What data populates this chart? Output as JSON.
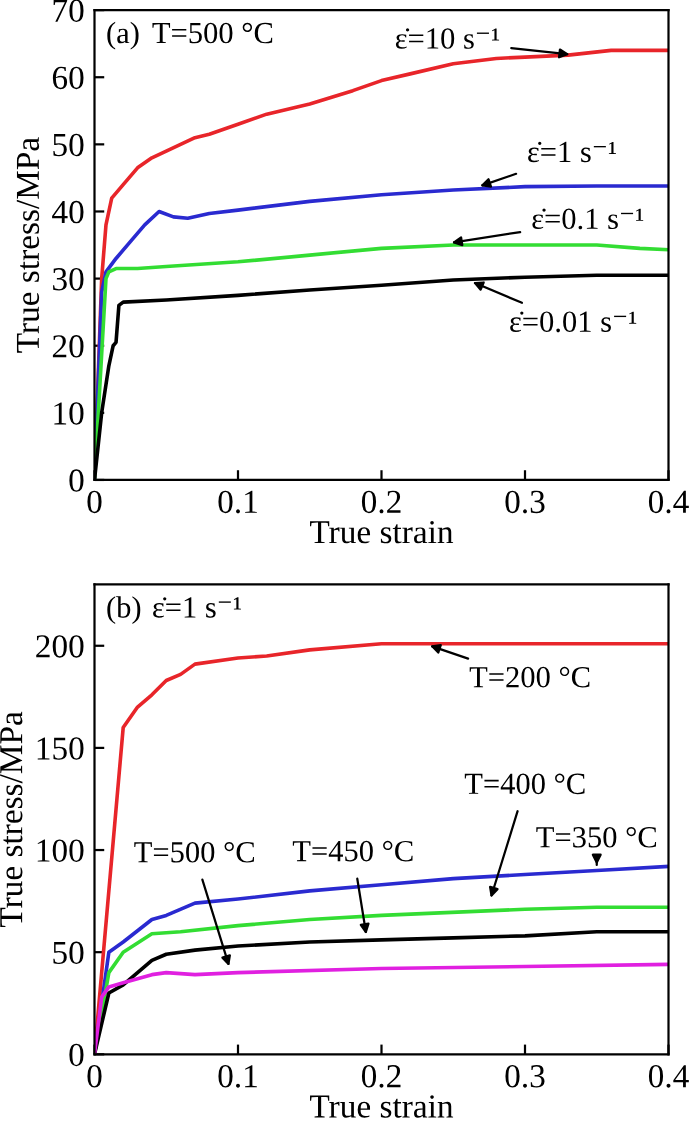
{
  "chart_data": [
    {
      "type": "line",
      "xlabel": "True strain",
      "ylabel": "True stress/MPa",
      "xlim": [
        0,
        0.4
      ],
      "ylim": [
        0,
        70
      ],
      "xticks": [
        0,
        0.1,
        0.2,
        0.3,
        0.4
      ],
      "yticks": [
        0,
        10,
        20,
        30,
        40,
        50,
        60,
        70
      ],
      "grid": false,
      "marker": "none",
      "line_style": "solid",
      "annotations": [
        "(a)",
        "T=500 °C",
        {
          "text": "ε̇=10 s⁻¹",
          "x": 0.335,
          "y": 63.3
        },
        {
          "text": "ε̇=1 s⁻¹",
          "x": 0.265,
          "y": 43.5
        },
        {
          "text": "ε̇=0.1 s⁻¹",
          "x": 0.245,
          "y": 35.2
        },
        {
          "text": "ε̇=0.01 s⁻¹",
          "x": 0.26,
          "y": 29.8
        }
      ],
      "series": [
        {
          "color": "#e8252a",
          "x": [
            0,
            0.005,
            0.008,
            0.012,
            0.02,
            0.03,
            0.04,
            0.05,
            0.06,
            0.07,
            0.08,
            0.1,
            0.12,
            0.15,
            0.18,
            0.2,
            0.22,
            0.25,
            0.28,
            0.3,
            0.33,
            0.36,
            0.38,
            0.4
          ],
          "values": [
            0,
            30,
            38,
            42,
            44,
            46.5,
            48,
            49,
            50,
            51,
            51.5,
            53,
            54.5,
            56,
            58,
            59.5,
            60.5,
            62,
            62.8,
            63,
            63.3,
            64,
            64,
            64
          ]
        },
        {
          "color": "#2a2ad0",
          "x": [
            0,
            0.005,
            0.008,
            0.015,
            0.025,
            0.035,
            0.045,
            0.055,
            0.065,
            0.08,
            0.1,
            0.15,
            0.2,
            0.25,
            0.3,
            0.35,
            0.4
          ],
          "values": [
            0,
            28,
            31,
            33,
            35.5,
            38,
            40,
            39.2,
            39,
            39.7,
            40.2,
            41.5,
            42.5,
            43.2,
            43.7,
            43.8,
            43.8
          ]
        },
        {
          "color": "#33dd33",
          "x": [
            0,
            0.004,
            0.008,
            0.01,
            0.015,
            0.03,
            0.05,
            0.1,
            0.15,
            0.2,
            0.25,
            0.3,
            0.35,
            0.38,
            0.4
          ],
          "values": [
            0,
            15,
            30,
            31,
            31.5,
            31.5,
            31.8,
            32.5,
            33.5,
            34.5,
            35,
            35,
            35,
            34.5,
            34.3
          ]
        },
        {
          "color": "#000000",
          "x": [
            0,
            0.005,
            0.01,
            0.013,
            0.015,
            0.017,
            0.02,
            0.05,
            0.1,
            0.15,
            0.2,
            0.25,
            0.3,
            0.35,
            0.4
          ],
          "values": [
            0,
            10,
            17,
            20,
            20.5,
            26,
            26.5,
            26.8,
            27.5,
            28.3,
            29,
            29.8,
            30.2,
            30.5,
            30.5
          ]
        }
      ]
    },
    {
      "type": "line",
      "xlabel": "True strain",
      "ylabel": "True stress/MPa",
      "xlim": [
        0,
        0.4
      ],
      "ylim": [
        0,
        230
      ],
      "xticks": [
        0,
        0.1,
        0.2,
        0.3,
        0.4
      ],
      "yticks": [
        0,
        50,
        100,
        150,
        200
      ],
      "grid": false,
      "marker": "none",
      "line_style": "solid",
      "annotations": [
        "(b)",
        "ε̇=1 s⁻¹",
        {
          "text": "T=200 °C",
          "x": 0.23,
          "y": 201
        },
        {
          "text": "T=350 °C",
          "x": 0.35,
          "y": 90
        },
        {
          "text": "T=400 °C",
          "x": 0.275,
          "y": 74
        },
        {
          "text": "T=450 °C",
          "x": 0.19,
          "y": 56
        },
        {
          "text": "T=500 °C",
          "x": 0.095,
          "y": 40.5
        }
      ],
      "series": [
        {
          "color": "#e8252a",
          "x": [
            0,
            0.02,
            0.03,
            0.04,
            0.05,
            0.06,
            0.07,
            0.1,
            0.12,
            0.15,
            0.2,
            0.4
          ],
          "values": [
            0,
            160,
            170,
            176,
            183,
            186,
            191,
            194,
            195,
            198,
            201,
            201
          ]
        },
        {
          "color": "#2a2ad0",
          "x": [
            0,
            0.01,
            0.02,
            0.04,
            0.05,
            0.07,
            0.1,
            0.15,
            0.2,
            0.25,
            0.3,
            0.35,
            0.4
          ],
          "values": [
            0,
            50,
            55,
            66,
            68,
            74,
            76,
            80,
            83,
            86,
            88,
            90,
            92
          ]
        },
        {
          "color": "#33dd33",
          "x": [
            0,
            0.01,
            0.02,
            0.04,
            0.06,
            0.1,
            0.15,
            0.2,
            0.3,
            0.35,
            0.4
          ],
          "values": [
            0,
            40,
            50,
            59,
            60,
            63,
            66,
            68,
            71,
            72,
            72
          ]
        },
        {
          "color": "#000000",
          "x": [
            0,
            0.01,
            0.02,
            0.03,
            0.04,
            0.05,
            0.07,
            0.1,
            0.15,
            0.2,
            0.25,
            0.3,
            0.35,
            0.4
          ],
          "values": [
            0,
            30,
            34,
            40,
            46,
            49,
            51,
            53,
            55,
            56,
            57,
            58,
            60,
            60
          ]
        },
        {
          "color": "#e020e0",
          "x": [
            0,
            0.005,
            0.01,
            0.02,
            0.04,
            0.05,
            0.07,
            0.1,
            0.2,
            0.3,
            0.4
          ],
          "values": [
            0,
            28,
            33,
            35,
            39,
            40,
            39,
            40,
            42,
            43,
            44
          ]
        }
      ]
    }
  ]
}
